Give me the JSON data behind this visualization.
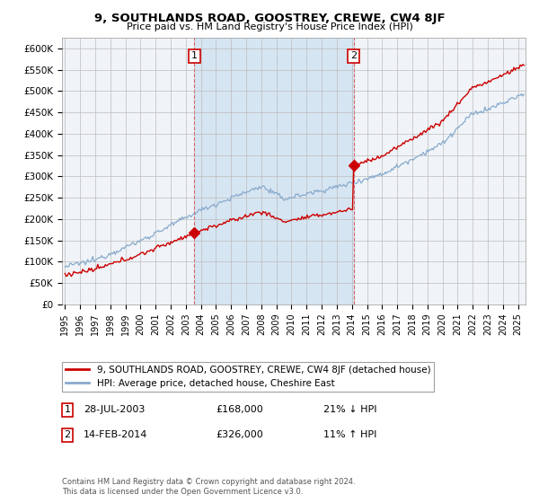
{
  "title": "9, SOUTHLANDS ROAD, GOOSTREY, CREWE, CW4 8JF",
  "subtitle": "Price paid vs. HM Land Registry's House Price Index (HPI)",
  "ylim": [
    0,
    620000
  ],
  "xlim_start": 1994.8,
  "xlim_end": 2025.5,
  "legend_line1": "9, SOUTHLANDS ROAD, GOOSTREY, CREWE, CW4 8JF (detached house)",
  "legend_line2": "HPI: Average price, detached house, Cheshire East",
  "sale1_date": "28-JUL-2003",
  "sale1_price": "£168,000",
  "sale1_hpi": "21% ↓ HPI",
  "sale2_date": "14-FEB-2014",
  "sale2_price": "£326,000",
  "sale2_hpi": "11% ↑ HPI",
  "footnote": "Contains HM Land Registry data © Crown copyright and database right 2024.\nThis data is licensed under the Open Government Licence v3.0.",
  "red_color": "#cc0000",
  "blue_color": "#88aacc",
  "shade_color": "#ddeeff",
  "background_color": "#eef4fa",
  "sale1_x": 2003.57,
  "sale1_y": 168000,
  "sale2_x": 2014.12,
  "sale2_y": 326000
}
